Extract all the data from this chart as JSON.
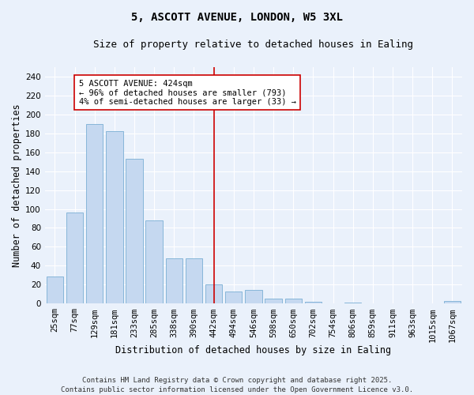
{
  "title": "5, ASCOTT AVENUE, LONDON, W5 3XL",
  "subtitle": "Size of property relative to detached houses in Ealing",
  "xlabel": "Distribution of detached houses by size in Ealing",
  "ylabel": "Number of detached properties",
  "categories": [
    "25sqm",
    "77sqm",
    "129sqm",
    "181sqm",
    "233sqm",
    "285sqm",
    "338sqm",
    "390sqm",
    "442sqm",
    "494sqm",
    "546sqm",
    "598sqm",
    "650sqm",
    "702sqm",
    "754sqm",
    "806sqm",
    "859sqm",
    "911sqm",
    "963sqm",
    "1015sqm",
    "1067sqm"
  ],
  "values": [
    29,
    96,
    190,
    182,
    153,
    88,
    48,
    48,
    20,
    13,
    14,
    5,
    5,
    2,
    0,
    1,
    0,
    0,
    0,
    0,
    3
  ],
  "bar_color": "#c5d8f0",
  "bar_edge_color": "#7aafd4",
  "background_color": "#eaf1fb",
  "grid_color": "#ffffff",
  "vline_x_index": 8,
  "vline_color": "#cc0000",
  "annotation_text": "5 ASCOTT AVENUE: 424sqm\n← 96% of detached houses are smaller (793)\n4% of semi-detached houses are larger (33) →",
  "annotation_box_color": "#ffffff",
  "annotation_box_edge": "#cc0000",
  "ylim": [
    0,
    250
  ],
  "yticks": [
    0,
    20,
    40,
    60,
    80,
    100,
    120,
    140,
    160,
    180,
    200,
    220,
    240
  ],
  "footer": "Contains HM Land Registry data © Crown copyright and database right 2025.\nContains public sector information licensed under the Open Government Licence v3.0.",
  "title_fontsize": 10,
  "subtitle_fontsize": 9,
  "axis_label_fontsize": 8.5,
  "tick_fontsize": 7.5,
  "annotation_fontsize": 7.5,
  "footer_fontsize": 6.5
}
